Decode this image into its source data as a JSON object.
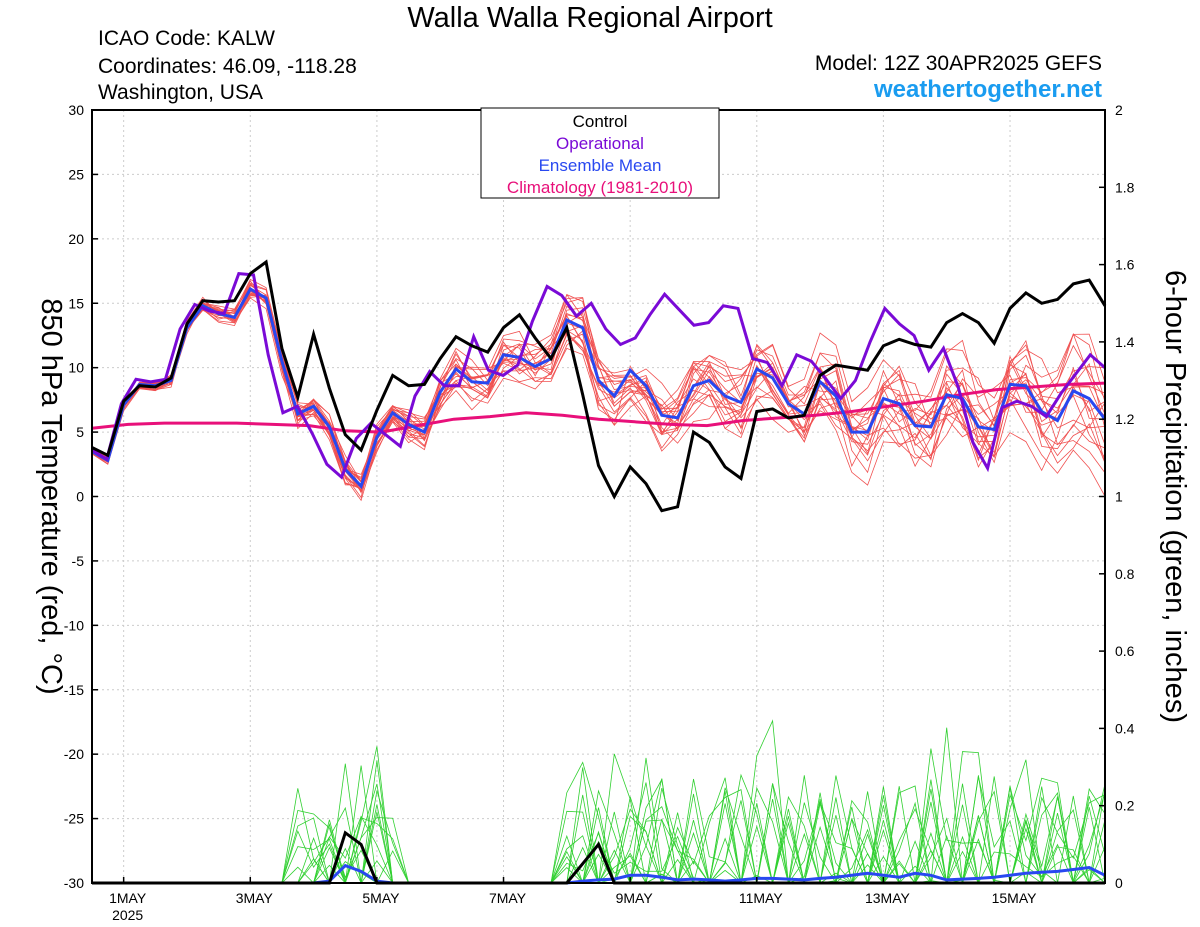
{
  "header": {
    "title": "Walla Walla Regional Airport",
    "icao": "ICAO Code: KALW",
    "coordinates": "Coordinates: 46.09, -118.28",
    "location": "Washington, USA",
    "model": "Model: 12Z 30APR2025 GEFS",
    "website": "weathertogether.net"
  },
  "legend": {
    "items": [
      {
        "label": "Control",
        "color": "#000000"
      },
      {
        "label": "Operational",
        "color": "#7a0ad6"
      },
      {
        "label": "Ensemble Mean",
        "color": "#2848f0"
      },
      {
        "label": "Climatology (1981-2010)",
        "color": "#e8107a"
      }
    ]
  },
  "chart_data": {
    "type": "line",
    "x_start": "30APR2025 12Z",
    "x_step": "6 hours",
    "ylabel_left": "850 hPa Temperature (red, °C)",
    "ylabel_right": "6-hour Precipitation (green, inches)",
    "ylim_left": [
      -30,
      30
    ],
    "ylim_right": [
      0,
      2
    ],
    "yticks_left": [
      "30",
      "25",
      "20",
      "15",
      "10",
      "5",
      "0",
      "-5",
      "-10",
      "-15",
      "-20",
      "-25",
      "-30"
    ],
    "yticks_right": [
      "2",
      "1.8",
      "1.6",
      "1.4",
      "1.2",
      "1",
      "0.8",
      "0.6",
      "0.4",
      "0.2",
      "0"
    ],
    "x_ticks": [
      {
        "label": "1MAY",
        "sub": "2025",
        "step": 2
      },
      {
        "label": "3MAY",
        "sub": "",
        "step": 10
      },
      {
        "label": "5MAY",
        "sub": "",
        "step": 18
      },
      {
        "label": "7MAY",
        "sub": "",
        "step": 26
      },
      {
        "label": "9MAY",
        "sub": "",
        "step": 34
      },
      {
        "label": "11MAY",
        "sub": "",
        "step": 42
      },
      {
        "label": "13MAY",
        "sub": "",
        "step": 50
      },
      {
        "label": "15MAY",
        "sub": "",
        "step": 58
      }
    ],
    "grid": true,
    "colors": {
      "members_temp": "#f05050",
      "members_precip": "#30d030",
      "control": "#000000",
      "operational": "#7a0ad6",
      "mean": "#2848f0",
      "climatology": "#e8107a"
    },
    "series": [
      {
        "name": "Control",
        "values": [
          3.8,
          3.2,
          7.4,
          8.6,
          8.5,
          9.2,
          13.4,
          15.2,
          15.1,
          15.2,
          17.3,
          18.2,
          11.5,
          7.7,
          12.6,
          8.4,
          4.8,
          3.6,
          6.7,
          9.4,
          8.6,
          8.7,
          10.7,
          12.4,
          11.7,
          11.2,
          13.1,
          14.1,
          12.3,
          10.7,
          13.1,
          7.9,
          2.4,
          0,
          2.3,
          1,
          -1.1,
          -0.8,
          5,
          4.2,
          2.3,
          1.4,
          6.6,
          6.8,
          6.1,
          6.3,
          9.4,
          10.2,
          10,
          9.8,
          11.7,
          12.2,
          11.8,
          11.6,
          13.5,
          14.2,
          13.5,
          11.9,
          14.6,
          15.8,
          15,
          15.3,
          16.5,
          16.8,
          14.8
        ]
      },
      {
        "name": "Operational",
        "values": [
          3.6,
          2.9,
          7.2,
          9.1,
          8.9,
          9.1,
          13,
          14.9,
          14.4,
          14.2,
          17.3,
          17.2,
          11,
          6.5,
          7,
          4.9,
          2.5,
          1.5,
          4.5,
          5.7,
          4.8,
          3.9,
          7.8,
          9.7,
          8.6,
          8.6,
          12.4,
          9.8,
          9.4,
          10.2,
          13.6,
          16.3,
          15.6,
          14,
          15,
          13,
          11.8,
          12.3,
          14.1,
          15.7,
          14.5,
          13.3,
          13.5,
          14.8,
          14.6,
          10.7,
          10.4,
          8.6,
          11,
          10.5,
          9.1,
          7.6,
          9,
          12,
          14.6,
          13.4,
          12.5,
          9.8,
          11.5,
          8.5,
          4.2,
          2.2,
          6.9,
          7.4,
          7,
          6.2,
          8,
          9.5,
          11,
          10
        ]
      },
      {
        "name": "Ensemble Mean",
        "values": [
          3.5,
          2.8,
          7.1,
          8.7,
          8.6,
          9,
          13.1,
          14.8,
          14.2,
          13.9,
          16.1,
          15.4,
          10.5,
          6.4,
          7,
          5.4,
          2.1,
          0.8,
          4.6,
          6.5,
          5.6,
          5,
          8.1,
          9.9,
          8.9,
          8.8,
          11,
          10.8,
          10.1,
          10.7,
          13.7,
          13.1,
          9,
          7.8,
          9.8,
          8.6,
          6.3,
          6.1,
          8.6,
          9,
          7.8,
          7.3,
          9.9,
          9.2,
          7.2,
          6.4,
          8.9,
          7.8,
          5,
          5,
          7.6,
          7.2,
          5.5,
          5.4,
          7.9,
          7.6,
          5.4,
          5.2,
          8.7,
          8.6,
          6.6,
          5.9,
          8.2,
          7.6,
          6
        ]
      },
      {
        "name": "Climatology (1981-2010)",
        "values": [
          5.3,
          5.6,
          5.7,
          5.7,
          5.7,
          5.6,
          5.5,
          5.1,
          5,
          5.5,
          6,
          6.2,
          6.5,
          6.3,
          6,
          5.8,
          5.6,
          5.5,
          5.9,
          6.1,
          6.3,
          6.6,
          7,
          7.4,
          7.9,
          8.3,
          8.5,
          8.7,
          8.8
        ]
      }
    ],
    "precip_series": [
      {
        "name": "Control",
        "values": [
          0,
          0,
          0,
          0,
          0,
          0,
          0,
          0,
          0,
          0,
          0,
          0,
          0,
          0,
          0,
          0,
          0.13,
          0.1,
          0,
          0,
          0,
          0,
          0,
          0,
          0,
          0,
          0,
          0,
          0,
          0,
          0,
          0.05,
          0.1,
          0,
          0,
          0,
          0,
          0,
          0,
          0,
          0,
          0,
          0,
          0,
          0,
          0,
          0,
          0,
          0,
          0,
          0,
          0,
          0,
          0,
          0,
          0,
          0,
          0,
          0,
          0,
          0,
          0,
          0,
          0,
          0
        ]
      },
      {
        "name": "Ensemble Mean",
        "values": [
          0,
          0,
          0,
          0,
          0,
          0,
          0,
          0,
          0,
          0,
          0,
          0,
          0,
          0,
          0,
          0.005,
          0.045,
          0.03,
          0.005,
          0,
          0,
          0,
          0,
          0,
          0,
          0,
          0,
          0,
          0,
          0,
          0,
          0.005,
          0.008,
          0.01,
          0.02,
          0.02,
          0.015,
          0.008,
          0.01,
          0.008,
          0.005,
          0.008,
          0.012,
          0.012,
          0.01,
          0.008,
          0.012,
          0.015,
          0.02,
          0.025,
          0.02,
          0.015,
          0.025,
          0.02,
          0.008,
          0.01,
          0.012,
          0.015,
          0.02,
          0.025,
          0.028,
          0.03,
          0.035,
          0.04,
          0.02
        ]
      }
    ]
  }
}
